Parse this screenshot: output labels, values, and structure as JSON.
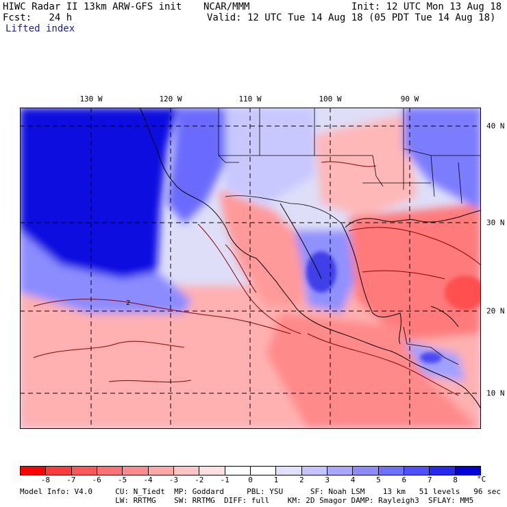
{
  "header": {
    "model": "HIWC Radar II 13km ARW-GFS init",
    "org": "NCAR/MMM",
    "init": "Init: 12 UTC Mon 13 Aug 18",
    "fcst": "Fcst:   24 h",
    "valid": "Valid: 12 UTC Tue 14 Aug 18 (05 PDT Tue 14 Aug 18)",
    "field": "Lifted index"
  },
  "map": {
    "lon_labels": [
      "130 W",
      "120 W",
      "110 W",
      "100 W",
      "90 W"
    ],
    "lat_labels": [
      "40 N",
      "30 N",
      "20 N",
      "10 N"
    ],
    "contour_label": "2"
  },
  "colorbar": {
    "ticks": [
      "-8",
      "-7",
      "-6",
      "-5",
      "-4",
      "-3",
      "-2",
      "-1",
      "0",
      "1",
      "2",
      "3",
      "4",
      "5",
      "6",
      "7",
      "8"
    ],
    "unit": "°C",
    "colors": [
      "#ff0000",
      "#ff3a3a",
      "#ff5858",
      "#ff7070",
      "#ff8c8c",
      "#ffa8a8",
      "#ffc4c4",
      "#ffe0e0",
      "#ffffff",
      "#ffffff",
      "#e0e0ff",
      "#c4c4ff",
      "#a8a8ff",
      "#8c8cff",
      "#7070ff",
      "#5050ff",
      "#2828f0",
      "#0000dc"
    ]
  },
  "footer": {
    "line1": "Model Info: V4.0     CU: N_Tiedt  MP: Goddard     PBL: YSU      SF: Noah LSM    13 km   51 levels   96 sec",
    "line2": "                     LW: RRTMG    SW: RRTMG  DIFF: full    KM: 2D Smagor DAMP: Rayleigh3  SFLAY: MM5"
  }
}
